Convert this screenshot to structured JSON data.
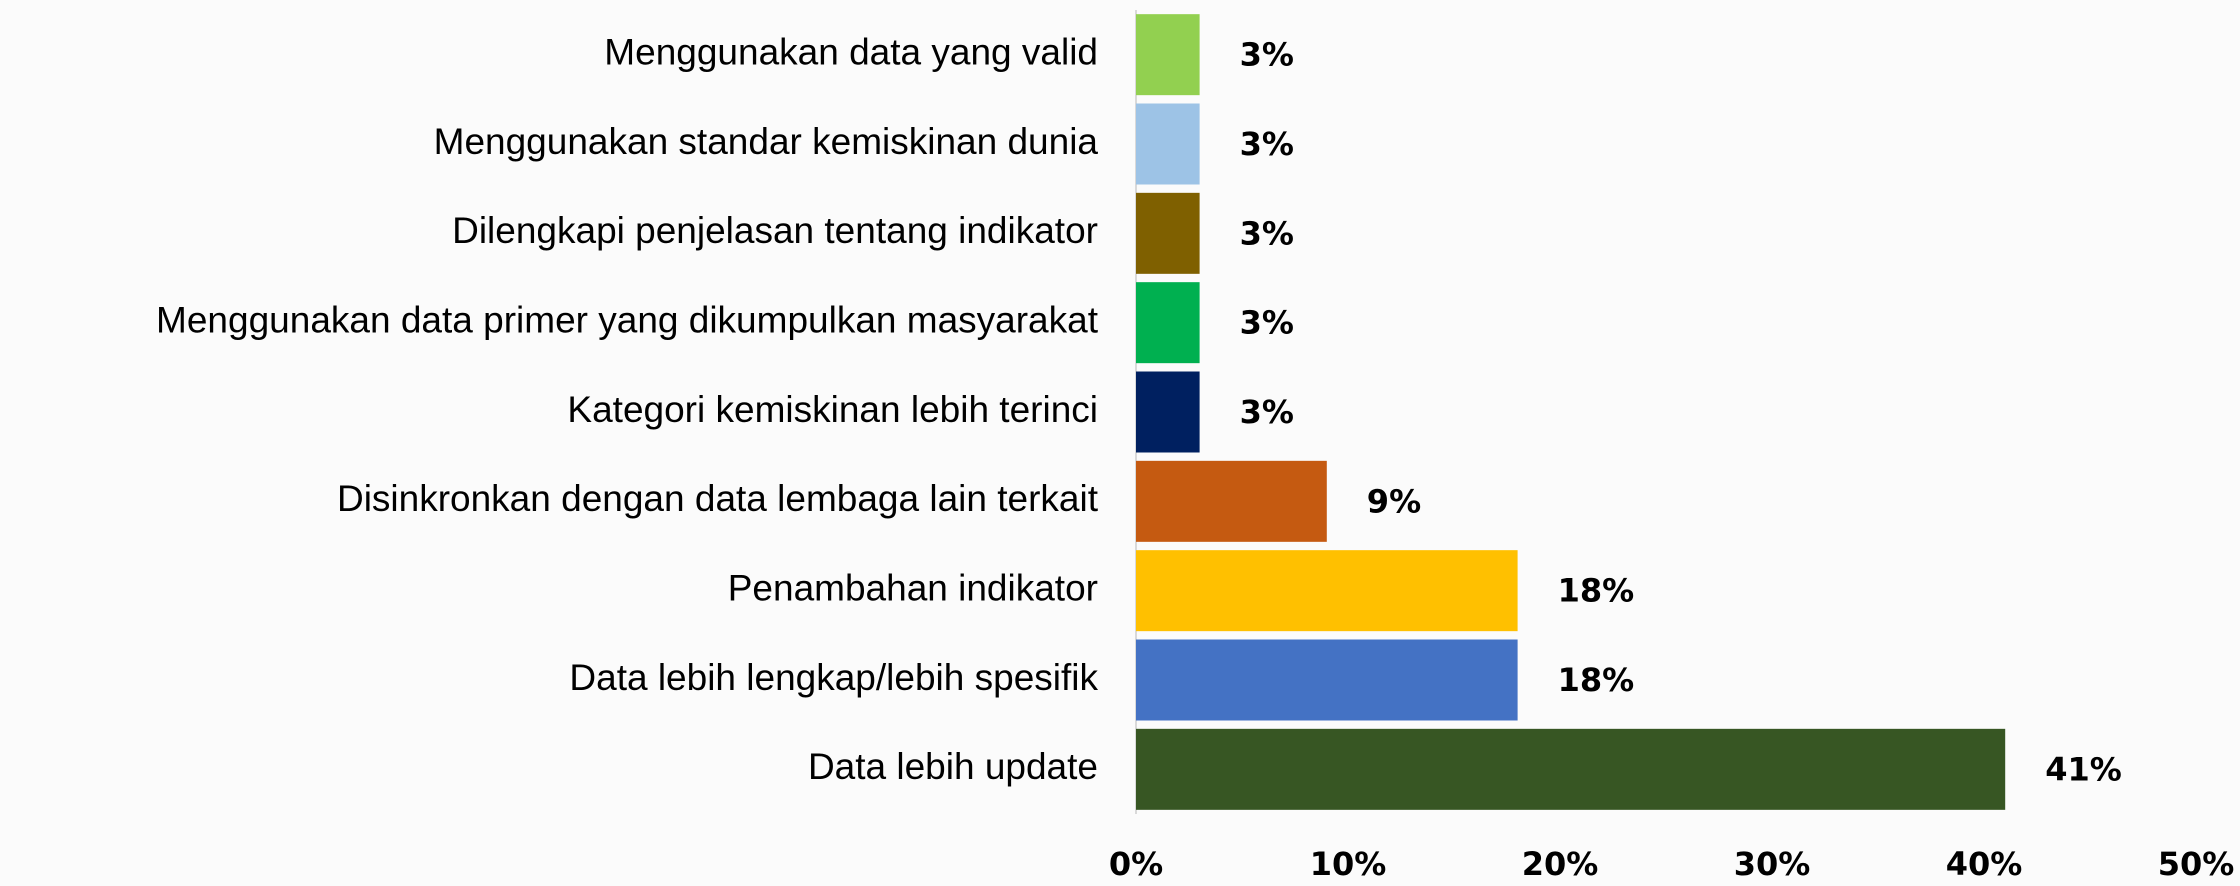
{
  "chart_data": {
    "type": "bar",
    "orientation": "horizontal",
    "categories": [
      "Menggunakan data yang valid",
      "Menggunakan standar kemiskinan dunia",
      "Dilengkapi penjelasan tentang indikator",
      "Menggunakan data primer yang dikumpulkan masyarakat",
      "Kategori kemiskinan lebih terinci",
      "Disinkronkan dengan data lembaga lain terkait",
      "Penambahan indikator",
      "Data lebih lengkap/lebih spesifik",
      "Data lebih update"
    ],
    "values": [
      3,
      3,
      3,
      3,
      3,
      9,
      18,
      18,
      41
    ],
    "value_labels": [
      "3%",
      "3%",
      "3%",
      "3%",
      "3%",
      "9%",
      "18%",
      "18%",
      "41%"
    ],
    "colors": [
      "#92d050",
      "#9dc3e6",
      "#7f6000",
      "#00b050",
      "#002060",
      "#c55a11",
      "#ffc000",
      "#4472c4",
      "#375623"
    ],
    "xlim": [
      0,
      50
    ],
    "xticks": [
      {
        "value": 0,
        "label": "0%"
      },
      {
        "value": 10,
        "label": "10%"
      },
      {
        "value": 20,
        "label": "20%"
      },
      {
        "value": 30,
        "label": "30%"
      },
      {
        "value": 40,
        "label": "40%"
      },
      {
        "value": 50,
        "label": "50%"
      }
    ]
  }
}
